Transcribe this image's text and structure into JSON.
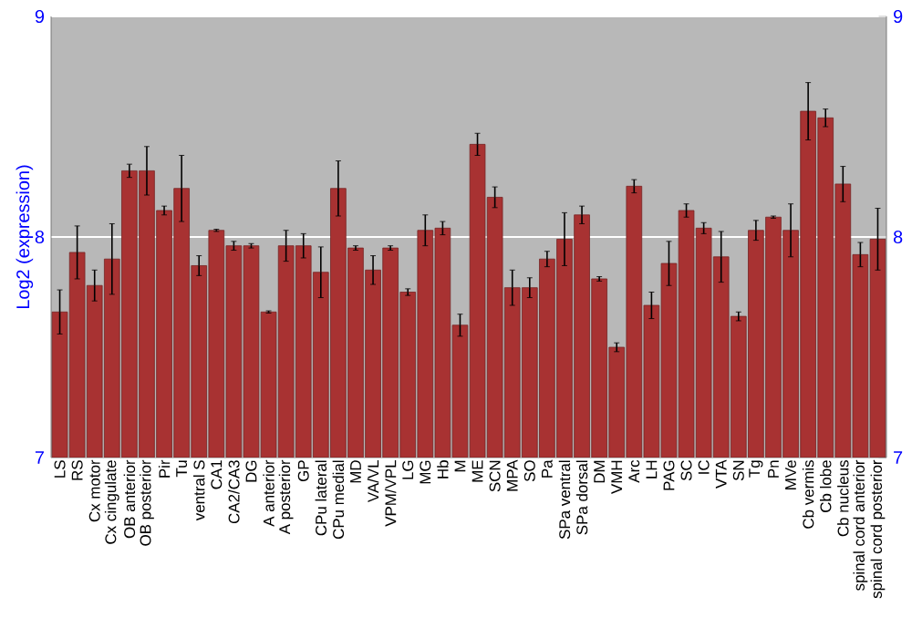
{
  "chart_data": {
    "type": "bar",
    "ylabel": "Log2 (expression)",
    "categories": [
      "LS",
      "RS",
      "Cx motor",
      "Cx cingulate",
      "OB anterior",
      "OB posterior",
      "Pir",
      "Tu",
      "ventral S",
      "CA1",
      "CA2/CA3",
      "DG",
      "A anterior",
      "A posterior",
      "GP",
      "CPu lateral",
      "CPu medial",
      "MD",
      "VA/VL",
      "VPM/VPL",
      "LG",
      "MG",
      "Hb",
      "M",
      "ME",
      "SCN",
      "MPA",
      "SO",
      "Pa",
      "SPa ventral",
      "SPa dorsal",
      "DM",
      "VMH",
      "Arc",
      "LH",
      "PAG",
      "SC",
      "IC",
      "VTA",
      "SN",
      "Tg",
      "Pn",
      "MVe",
      "Cb vermis",
      "Cb lobe",
      "Cb nucleus",
      "spinal cord anterior",
      "spinal cord posterior"
    ],
    "values": [
      7.66,
      7.93,
      7.78,
      7.9,
      8.3,
      8.3,
      8.12,
      8.22,
      7.87,
      8.03,
      7.96,
      7.96,
      7.66,
      7.96,
      7.96,
      7.84,
      8.22,
      7.95,
      7.85,
      7.95,
      7.75,
      8.03,
      8.04,
      7.6,
      8.42,
      8.18,
      7.77,
      7.77,
      7.9,
      7.99,
      8.1,
      7.81,
      7.5,
      8.23,
      7.69,
      7.88,
      8.12,
      8.04,
      7.91,
      7.64,
      8.03,
      8.09,
      8.03,
      8.57,
      8.54,
      8.24,
      7.92,
      7.99
    ],
    "errors": [
      0.1,
      0.12,
      0.07,
      0.16,
      0.03,
      0.11,
      0.02,
      0.15,
      0.045,
      0.005,
      0.02,
      0.01,
      0.005,
      0.07,
      0.055,
      0.115,
      0.125,
      0.01,
      0.065,
      0.01,
      0.015,
      0.07,
      0.03,
      0.05,
      0.05,
      0.047,
      0.08,
      0.045,
      0.035,
      0.12,
      0.04,
      0.01,
      0.02,
      0.03,
      0.06,
      0.1,
      0.03,
      0.025,
      0.115,
      0.02,
      0.045,
      0.005,
      0.12,
      0.13,
      0.04,
      0.08,
      0.055,
      0.14
    ],
    "color": "#a83232",
    "ylim": [
      7,
      9
    ],
    "yticks": [
      7,
      8,
      9
    ],
    "y2lim": [
      7,
      9
    ],
    "y2ticks": [
      7,
      8,
      9
    ],
    "grid": "y"
  }
}
